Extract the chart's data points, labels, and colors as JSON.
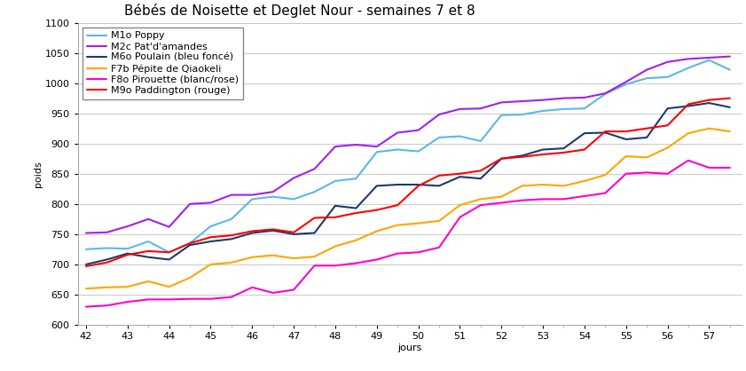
{
  "title": "Bébés de Noisette et Deglet Nour - semaines 7 et 8",
  "xlabel": "jours",
  "ylabel": "poids",
  "xlim": [
    41.8,
    57.8
  ],
  "ylim": [
    600,
    1100
  ],
  "yticks": [
    600,
    650,
    700,
    750,
    800,
    850,
    900,
    950,
    1000,
    1050,
    1100
  ],
  "xticks": [
    42,
    43,
    44,
    45,
    46,
    47,
    48,
    49,
    50,
    51,
    52,
    53,
    54,
    55,
    56,
    57
  ],
  "series": [
    {
      "label": "M1o Poppy",
      "color": "#5BB8E8",
      "linewidth": 1.5,
      "x": [
        42,
        42.5,
        43,
        43.5,
        44,
        44.5,
        45,
        45.5,
        46,
        46.5,
        47,
        47.5,
        48,
        48.5,
        49,
        49.5,
        50,
        50.5,
        51,
        51.5,
        52,
        52.5,
        53,
        53.5,
        54,
        54.5,
        55,
        55.5,
        56,
        56.5,
        57,
        57.5
      ],
      "y": [
        725,
        727,
        726,
        738,
        720,
        735,
        763,
        775,
        808,
        812,
        808,
        820,
        838,
        842,
        886,
        890,
        887,
        910,
        912,
        904,
        947,
        948,
        954,
        957,
        958,
        982,
        998,
        1008,
        1010,
        1025,
        1038,
        1022
      ]
    },
    {
      "label": "M2c Pat'd'amandes",
      "color": "#A020F0",
      "linewidth": 1.5,
      "x": [
        42,
        42.5,
        43,
        43.5,
        44,
        44.5,
        45,
        45.5,
        46,
        46.5,
        47,
        47.5,
        48,
        48.5,
        49,
        49.5,
        50,
        50.5,
        51,
        51.5,
        52,
        52.5,
        53,
        53.5,
        54,
        54.5,
        55,
        55.5,
        56,
        56.5,
        57,
        57.5
      ],
      "y": [
        752,
        753,
        763,
        775,
        762,
        800,
        802,
        815,
        815,
        820,
        843,
        858,
        895,
        898,
        895,
        918,
        922,
        948,
        957,
        958,
        968,
        970,
        972,
        975,
        976,
        983,
        1002,
        1022,
        1035,
        1040,
        1042,
        1044
      ]
    },
    {
      "label": "M6o Poulain (bleu foncé)",
      "color": "#1C3A6E",
      "linewidth": 1.5,
      "x": [
        42,
        42.5,
        43,
        43.5,
        44,
        44.5,
        45,
        45.5,
        46,
        46.5,
        47,
        47.5,
        48,
        48.5,
        49,
        49.5,
        50,
        50.5,
        51,
        51.5,
        52,
        52.5,
        53,
        53.5,
        54,
        54.5,
        55,
        55.5,
        56,
        56.5,
        57,
        57.5
      ],
      "y": [
        700,
        708,
        718,
        712,
        708,
        732,
        738,
        742,
        752,
        756,
        750,
        752,
        797,
        793,
        830,
        832,
        832,
        830,
        845,
        842,
        875,
        880,
        890,
        892,
        917,
        918,
        907,
        910,
        958,
        962,
        967,
        960
      ]
    },
    {
      "label": "F7b Pépite de Qiaokeli",
      "color": "#FFA500",
      "linewidth": 1.5,
      "x": [
        42,
        42.5,
        43,
        43.5,
        44,
        44.5,
        45,
        45.5,
        46,
        46.5,
        47,
        47.5,
        48,
        48.5,
        49,
        49.5,
        50,
        50.5,
        51,
        51.5,
        52,
        52.5,
        53,
        53.5,
        54,
        54.5,
        55,
        55.5,
        56,
        56.5,
        57,
        57.5
      ],
      "y": [
        660,
        662,
        663,
        672,
        663,
        678,
        700,
        703,
        712,
        715,
        710,
        713,
        730,
        740,
        755,
        765,
        768,
        772,
        798,
        808,
        812,
        830,
        832,
        830,
        838,
        848,
        879,
        877,
        893,
        917,
        925,
        920
      ]
    },
    {
      "label": "F8o Pirouette (blanc/rose)",
      "color": "#FF00CC",
      "linewidth": 1.5,
      "x": [
        42,
        42.5,
        43,
        43.5,
        44,
        44.5,
        45,
        45.5,
        46,
        46.5,
        47,
        47.5,
        48,
        48.5,
        49,
        49.5,
        50,
        50.5,
        51,
        51.5,
        52,
        52.5,
        53,
        53.5,
        54,
        54.5,
        55,
        55.5,
        56,
        56.5,
        57,
        57.5
      ],
      "y": [
        630,
        632,
        638,
        642,
        642,
        643,
        643,
        646,
        662,
        653,
        658,
        698,
        698,
        702,
        708,
        718,
        720,
        728,
        778,
        798,
        802,
        806,
        808,
        808,
        813,
        818,
        850,
        852,
        850,
        872,
        860,
        860
      ]
    },
    {
      "label": "M9o Paddington (rouge)",
      "color": "#FF0000",
      "linewidth": 1.5,
      "x": [
        42,
        42.5,
        43,
        43.5,
        44,
        44.5,
        45,
        45.5,
        46,
        46.5,
        47,
        47.5,
        48,
        48.5,
        49,
        49.5,
        50,
        50.5,
        51,
        51.5,
        52,
        52.5,
        53,
        53.5,
        54,
        54.5,
        55,
        55.5,
        56,
        56.5,
        57,
        57.5
      ],
      "y": [
        697,
        703,
        716,
        722,
        720,
        735,
        745,
        748,
        755,
        758,
        753,
        777,
        778,
        785,
        790,
        798,
        830,
        847,
        850,
        855,
        875,
        878,
        882,
        885,
        890,
        920,
        920,
        925,
        930,
        965,
        972,
        975
      ]
    }
  ],
  "background_color": "#ffffff",
  "grid_color": "#c8c8c8",
  "title_fontsize": 11,
  "label_fontsize": 8,
  "tick_fontsize": 8,
  "legend_fontsize": 8
}
